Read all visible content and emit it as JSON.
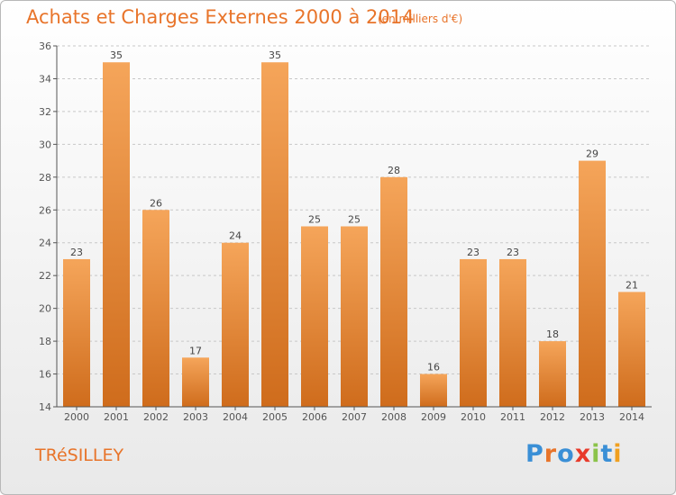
{
  "page": {
    "title": "Achats et Charges Externes 2000 à 2014",
    "subtitle": "(en milliers d'€)",
    "commune": "TRéSILLEY",
    "logo": {
      "text": "Proxiti",
      "letter_colors": [
        "#3a8fd6",
        "#e8742a",
        "#3a8fd6",
        "#e83a2a",
        "#8bc34a",
        "#3a8fd6",
        "#f0a020"
      ]
    }
  },
  "colors": {
    "accent": "#e8742a",
    "bar_light": "#f5a55a",
    "bar_dark": "#cf6c1c",
    "grid": "#c8c8c8",
    "axis": "#555555"
  },
  "chart_data": {
    "type": "bar",
    "categories": [
      "2000",
      "2001",
      "2002",
      "2003",
      "2004",
      "2005",
      "2006",
      "2007",
      "2008",
      "2009",
      "2010",
      "2011",
      "2012",
      "2013",
      "2014"
    ],
    "values": [
      23,
      35,
      26,
      17,
      24,
      35,
      25,
      25,
      28,
      16,
      23,
      23,
      18,
      29,
      21
    ],
    "ylim": [
      14,
      36
    ],
    "yticks": [
      14,
      16,
      18,
      20,
      22,
      24,
      26,
      28,
      30,
      32,
      34,
      36
    ],
    "grid": "horizontal dashed",
    "data_labels": true
  }
}
